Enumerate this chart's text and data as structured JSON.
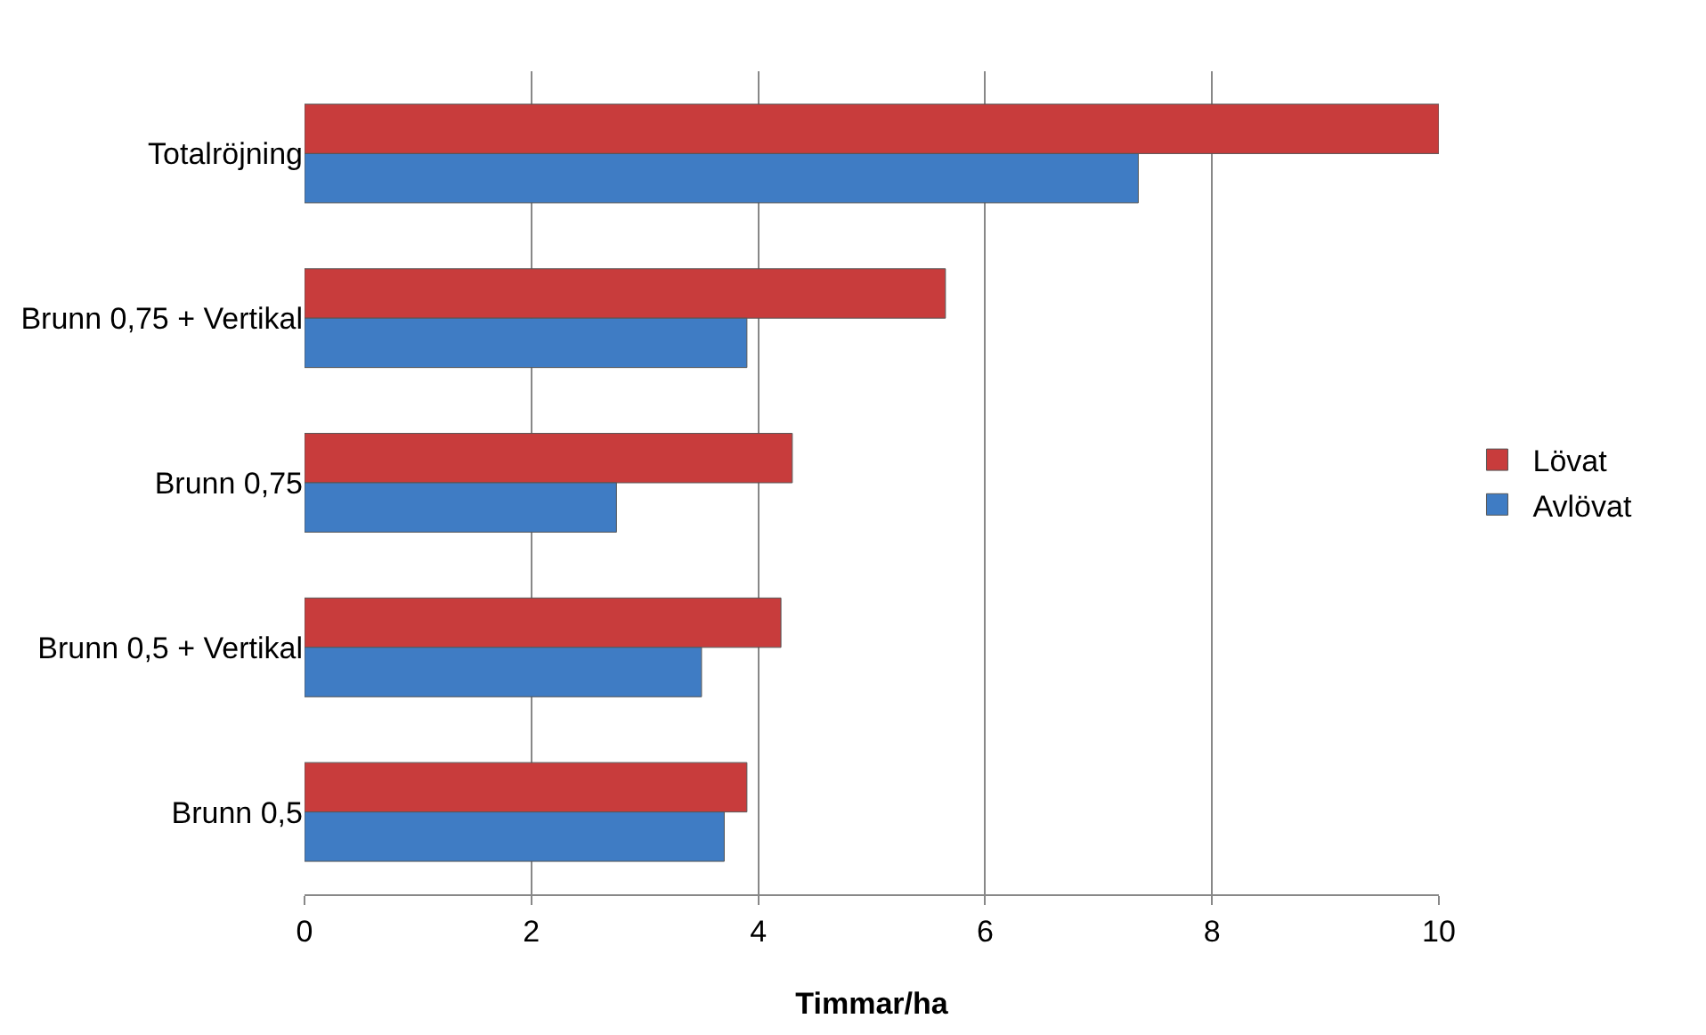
{
  "chart_data": {
    "type": "bar",
    "orientation": "horizontal",
    "xlabel": "Timmar/ha",
    "categories": [
      "Totalröjning",
      "Brunn 0,75 + Vertikal",
      "Brunn 0,75",
      "Brunn 0,5 + Vertikal",
      "Brunn 0,5"
    ],
    "series": [
      {
        "name": "Lövat",
        "color": "#c83c3c",
        "values": [
          10,
          5.65,
          4.3,
          4.2,
          3.9
        ]
      },
      {
        "name": "Avlövat",
        "color": "#3f7cc4",
        "values": [
          7.35,
          3.9,
          2.75,
          3.5,
          3.7
        ]
      }
    ],
    "xlim": [
      0,
      10
    ],
    "xticks": [
      0,
      2,
      4,
      6,
      8,
      10
    ],
    "grid": "x",
    "legend": "right"
  }
}
